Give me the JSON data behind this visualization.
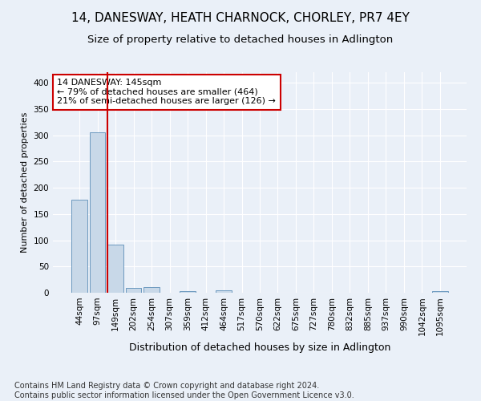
{
  "title1": "14, DANESWAY, HEATH CHARNOCK, CHORLEY, PR7 4EY",
  "title2": "Size of property relative to detached houses in Adlington",
  "xlabel": "Distribution of detached houses by size in Adlington",
  "ylabel": "Number of detached properties",
  "footnote": "Contains HM Land Registry data © Crown copyright and database right 2024.\nContains public sector information licensed under the Open Government Licence v3.0.",
  "bin_labels": [
    "44sqm",
    "97sqm",
    "149sqm",
    "202sqm",
    "254sqm",
    "307sqm",
    "359sqm",
    "412sqm",
    "464sqm",
    "517sqm",
    "570sqm",
    "622sqm",
    "675sqm",
    "727sqm",
    "780sqm",
    "832sqm",
    "885sqm",
    "937sqm",
    "990sqm",
    "1042sqm",
    "1095sqm"
  ],
  "bar_heights": [
    177,
    305,
    92,
    9,
    10,
    0,
    3,
    0,
    5,
    0,
    0,
    0,
    0,
    0,
    0,
    0,
    0,
    0,
    0,
    0,
    3
  ],
  "highlight_bin_index": 2,
  "annotation_text": "14 DANESWAY: 145sqm\n← 79% of detached houses are smaller (464)\n21% of semi-detached houses are larger (126) →",
  "bar_color": "#c8d8e8",
  "bar_edge_color": "#5b8db8",
  "highlight_line_color": "#cc0000",
  "annotation_box_edge": "#cc0000",
  "ylim": [
    0,
    420
  ],
  "yticks": [
    0,
    50,
    100,
    150,
    200,
    250,
    300,
    350,
    400
  ],
  "bg_color": "#eaf0f8",
  "plot_bg_color": "#eaf0f8",
  "grid_color": "#ffffff",
  "title1_fontsize": 11,
  "title2_fontsize": 9.5,
  "ylabel_fontsize": 8,
  "xlabel_fontsize": 9,
  "annotation_fontsize": 8,
  "footnote_fontsize": 7,
  "tick_fontsize": 7.5
}
